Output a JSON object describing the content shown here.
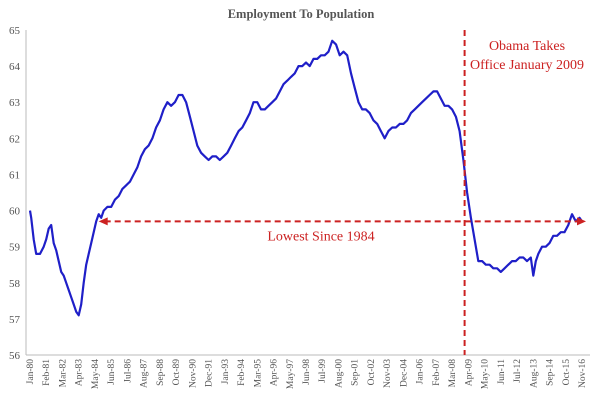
{
  "chart_data": {
    "type": "line",
    "title": "Employment To Population",
    "ylim": [
      56,
      65
    ],
    "yticks": [
      56,
      57,
      58,
      59,
      60,
      61,
      62,
      63,
      64,
      65
    ],
    "x_tick_labels": [
      "Jan-80",
      "Feb-81",
      "Mar-82",
      "Apr-83",
      "May-84",
      "Jun-85",
      "Jul-86",
      "Aug-87",
      "Sep-88",
      "Oct-89",
      "Nov-90",
      "Dec-91",
      "Jan-93",
      "Feb-94",
      "Mar-95",
      "Apr-96",
      "May-97",
      "Jun-98",
      "Jul-99",
      "Aug-00",
      "Sep-01",
      "Oct-02",
      "Nov-03",
      "Dec-04",
      "Jan-06",
      "Feb-07",
      "Mar-08",
      "Apr-09",
      "May-10",
      "Jun-11",
      "Jul-12",
      "Aug-13",
      "Sep-14",
      "Oct-15",
      "Nov-16"
    ],
    "series_color": "#1f1fc8",
    "annotation_color": "#cc2222",
    "series": [
      {
        "points": [
          [
            "1980-01",
            60.0
          ],
          [
            "1980-02",
            59.8
          ],
          [
            "1980-04",
            59.2
          ],
          [
            "1980-06",
            58.8
          ],
          [
            "1980-09",
            58.8
          ],
          [
            "1980-12",
            59.0
          ],
          [
            "1981-02",
            59.2
          ],
          [
            "1981-04",
            59.5
          ],
          [
            "1981-06",
            59.6
          ],
          [
            "1981-08",
            59.1
          ],
          [
            "1981-10",
            58.9
          ],
          [
            "1981-12",
            58.6
          ],
          [
            "1982-02",
            58.3
          ],
          [
            "1982-04",
            58.2
          ],
          [
            "1982-06",
            58.0
          ],
          [
            "1982-08",
            57.8
          ],
          [
            "1982-10",
            57.6
          ],
          [
            "1982-12",
            57.4
          ],
          [
            "1983-02",
            57.2
          ],
          [
            "1983-04",
            57.1
          ],
          [
            "1983-06",
            57.4
          ],
          [
            "1983-08",
            58.0
          ],
          [
            "1983-10",
            58.5
          ],
          [
            "1983-12",
            58.8
          ],
          [
            "1984-02",
            59.1
          ],
          [
            "1984-04",
            59.4
          ],
          [
            "1984-06",
            59.7
          ],
          [
            "1984-08",
            59.9
          ],
          [
            "1984-10",
            59.8
          ],
          [
            "1984-12",
            60.0
          ],
          [
            "1985-03",
            60.1
          ],
          [
            "1985-06",
            60.1
          ],
          [
            "1985-09",
            60.3
          ],
          [
            "1985-12",
            60.4
          ],
          [
            "1986-03",
            60.6
          ],
          [
            "1986-06",
            60.7
          ],
          [
            "1986-09",
            60.8
          ],
          [
            "1986-12",
            61.0
          ],
          [
            "1987-03",
            61.2
          ],
          [
            "1987-06",
            61.5
          ],
          [
            "1987-09",
            61.7
          ],
          [
            "1987-12",
            61.8
          ],
          [
            "1988-03",
            62.0
          ],
          [
            "1988-06",
            62.3
          ],
          [
            "1988-09",
            62.5
          ],
          [
            "1988-12",
            62.8
          ],
          [
            "1989-03",
            63.0
          ],
          [
            "1989-06",
            62.9
          ],
          [
            "1989-09",
            63.0
          ],
          [
            "1989-12",
            63.2
          ],
          [
            "1990-03",
            63.2
          ],
          [
            "1990-06",
            63.0
          ],
          [
            "1990-09",
            62.6
          ],
          [
            "1990-12",
            62.2
          ],
          [
            "1991-03",
            61.8
          ],
          [
            "1991-06",
            61.6
          ],
          [
            "1991-09",
            61.5
          ],
          [
            "1991-12",
            61.4
          ],
          [
            "1992-03",
            61.5
          ],
          [
            "1992-06",
            61.5
          ],
          [
            "1992-09",
            61.4
          ],
          [
            "1992-12",
            61.5
          ],
          [
            "1993-03",
            61.6
          ],
          [
            "1993-06",
            61.8
          ],
          [
            "1993-09",
            62.0
          ],
          [
            "1993-12",
            62.2
          ],
          [
            "1994-03",
            62.3
          ],
          [
            "1994-06",
            62.5
          ],
          [
            "1994-09",
            62.7
          ],
          [
            "1994-12",
            63.0
          ],
          [
            "1995-03",
            63.0
          ],
          [
            "1995-06",
            62.8
          ],
          [
            "1995-09",
            62.8
          ],
          [
            "1995-12",
            62.9
          ],
          [
            "1996-03",
            63.0
          ],
          [
            "1996-06",
            63.1
          ],
          [
            "1996-09",
            63.3
          ],
          [
            "1996-12",
            63.5
          ],
          [
            "1997-03",
            63.6
          ],
          [
            "1997-06",
            63.7
          ],
          [
            "1997-09",
            63.8
          ],
          [
            "1997-12",
            64.0
          ],
          [
            "1998-03",
            64.0
          ],
          [
            "1998-06",
            64.1
          ],
          [
            "1998-09",
            64.0
          ],
          [
            "1998-12",
            64.2
          ],
          [
            "1999-03",
            64.2
          ],
          [
            "1999-06",
            64.3
          ],
          [
            "1999-09",
            64.3
          ],
          [
            "1999-12",
            64.4
          ],
          [
            "2000-03",
            64.7
          ],
          [
            "2000-06",
            64.6
          ],
          [
            "2000-09",
            64.3
          ],
          [
            "2000-12",
            64.4
          ],
          [
            "2001-03",
            64.3
          ],
          [
            "2001-06",
            63.8
          ],
          [
            "2001-09",
            63.4
          ],
          [
            "2001-12",
            63.0
          ],
          [
            "2002-03",
            62.8
          ],
          [
            "2002-06",
            62.8
          ],
          [
            "2002-09",
            62.7
          ],
          [
            "2002-12",
            62.5
          ],
          [
            "2003-03",
            62.4
          ],
          [
            "2003-06",
            62.2
          ],
          [
            "2003-09",
            62.0
          ],
          [
            "2003-12",
            62.2
          ],
          [
            "2004-03",
            62.3
          ],
          [
            "2004-06",
            62.3
          ],
          [
            "2004-09",
            62.4
          ],
          [
            "2004-12",
            62.4
          ],
          [
            "2005-03",
            62.5
          ],
          [
            "2005-06",
            62.7
          ],
          [
            "2005-09",
            62.8
          ],
          [
            "2005-12",
            62.9
          ],
          [
            "2006-03",
            63.0
          ],
          [
            "2006-06",
            63.1
          ],
          [
            "2006-09",
            63.2
          ],
          [
            "2006-12",
            63.3
          ],
          [
            "2007-03",
            63.3
          ],
          [
            "2007-06",
            63.1
          ],
          [
            "2007-09",
            62.9
          ],
          [
            "2007-12",
            62.9
          ],
          [
            "2008-03",
            62.8
          ],
          [
            "2008-06",
            62.6
          ],
          [
            "2008-09",
            62.2
          ],
          [
            "2008-12",
            61.4
          ],
          [
            "2009-03",
            60.5
          ],
          [
            "2009-06",
            59.8
          ],
          [
            "2009-09",
            59.2
          ],
          [
            "2009-12",
            58.6
          ],
          [
            "2010-03",
            58.6
          ],
          [
            "2010-06",
            58.5
          ],
          [
            "2010-09",
            58.5
          ],
          [
            "2010-12",
            58.4
          ],
          [
            "2011-03",
            58.4
          ],
          [
            "2011-06",
            58.3
          ],
          [
            "2011-09",
            58.4
          ],
          [
            "2011-12",
            58.5
          ],
          [
            "2012-03",
            58.6
          ],
          [
            "2012-06",
            58.6
          ],
          [
            "2012-09",
            58.7
          ],
          [
            "2012-12",
            58.7
          ],
          [
            "2013-03",
            58.6
          ],
          [
            "2013-06",
            58.7
          ],
          [
            "2013-08",
            58.2
          ],
          [
            "2013-10",
            58.6
          ],
          [
            "2013-12",
            58.8
          ],
          [
            "2014-03",
            59.0
          ],
          [
            "2014-06",
            59.0
          ],
          [
            "2014-09",
            59.1
          ],
          [
            "2014-12",
            59.3
          ],
          [
            "2015-03",
            59.3
          ],
          [
            "2015-06",
            59.4
          ],
          [
            "2015-09",
            59.4
          ],
          [
            "2015-12",
            59.6
          ],
          [
            "2016-03",
            59.9
          ],
          [
            "2016-06",
            59.7
          ],
          [
            "2016-09",
            59.8
          ],
          [
            "2016-11",
            59.7
          ]
        ]
      }
    ],
    "annotations": {
      "vertical_line_x": "2009-01",
      "vertical_label_lines": [
        "Obama Takes",
        "Office January 2009"
      ],
      "horizontal_line_y": 59.7,
      "horizontal_from_x": "1984-08",
      "horizontal_label": "Lowest Since 1984"
    }
  }
}
